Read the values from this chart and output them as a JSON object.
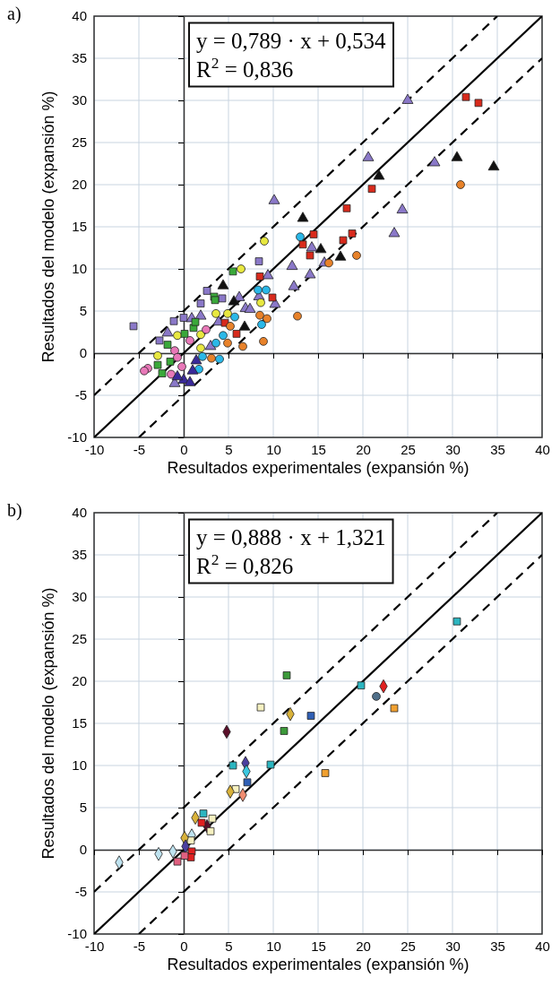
{
  "chart_data": [
    {
      "type": "scatter",
      "title": "a)",
      "xlabel": "Resultados experimentales (expansión %)",
      "ylabel": "Resultados del modelo (expansión %)",
      "xlim": [
        -10,
        40
      ],
      "ylim": [
        -10,
        40
      ],
      "xticks": [
        -10,
        -5,
        0,
        5,
        10,
        15,
        20,
        25,
        30,
        35,
        40
      ],
      "yticks": [
        -10,
        -5,
        0,
        5,
        10,
        15,
        20,
        25,
        30,
        35,
        40
      ],
      "grid": true,
      "annotations": [
        "y = 0,789 · x + 0,534",
        "R$^{2}$ = 0,836"
      ],
      "series": [
        {
          "type": "line",
          "color": "#000000",
          "line_style": "solid",
          "marker": "none",
          "x": [
            -10,
            40
          ],
          "values": [
            -10,
            40
          ]
        },
        {
          "type": "line",
          "color": "#000000",
          "line_style": "dashed",
          "marker": "none",
          "x": [
            -10,
            35
          ],
          "values": [
            -5,
            40
          ]
        },
        {
          "type": "line",
          "color": "#000000",
          "line_style": "dashed",
          "marker": "none",
          "x": [
            -5,
            40
          ],
          "values": [
            -10,
            35
          ]
        },
        {
          "color": "#8a78c8",
          "marker": "square",
          "x": [
            -5.6,
            2.6,
            1.9,
            4.3,
            8.4,
            0,
            -1.1,
            -2.7
          ],
          "values": [
            3.2,
            7.4,
            5.9,
            6.5,
            10.9,
            4.2,
            3.8,
            1.5
          ]
        },
        {
          "color": "#8a78c8",
          "marker": "triangle",
          "x": [
            10.1,
            9.4,
            12.1,
            12.3,
            10.2,
            8.4,
            6.2,
            6.9,
            7.4,
            3.9,
            1.9,
            0.9,
            -1.8,
            3.0,
            -1.0,
            14.3,
            25.0,
            20.6,
            28.0,
            24.4,
            23.5,
            15.7,
            14.1
          ],
          "values": [
            18.1,
            9.2,
            10.3,
            7.9,
            5.8,
            6.7,
            6.6,
            5.3,
            5.2,
            3.7,
            4.4,
            4.1,
            2.4,
            0.8,
            -3.6,
            12.5,
            30.0,
            23.2,
            22.6,
            17.0,
            14.2,
            10.7,
            9.3
          ]
        },
        {
          "color": "#111111",
          "marker": "triangle",
          "x": [
            21.8,
            30.5,
            34.6,
            13.3,
            15.3,
            17.5,
            4.4,
            5.6,
            6.8
          ],
          "values": [
            21.0,
            23.2,
            22.1,
            16.0,
            12.3,
            11.4,
            8.0,
            6.1,
            3.1
          ]
        },
        {
          "color": "#d82a1c",
          "marker": "square",
          "x": [
            31.5,
            32.9,
            21.0,
            18.2,
            14.5,
            18.8,
            17.8,
            13.3,
            14.1,
            8.5,
            9.9,
            5.9,
            4.6
          ],
          "values": [
            30.4,
            29.7,
            19.5,
            17.2,
            14.1,
            14.2,
            13.4,
            12.9,
            11.6,
            9.1,
            6.6,
            2.3,
            3.6
          ]
        },
        {
          "color": "#e8822a",
          "marker": "circle",
          "x": [
            30.9,
            19.3,
            16.2,
            12.7,
            8.5,
            9.3,
            8.9,
            6.6,
            4.9,
            5.2,
            3.1
          ],
          "values": [
            20.0,
            11.6,
            10.7,
            4.4,
            4.5,
            4.1,
            1.4,
            0.8,
            1.2,
            3.2,
            -0.6
          ]
        },
        {
          "color": "#2ab8e8",
          "marker": "circle",
          "x": [
            13.0,
            8.3,
            9.2,
            8.7,
            5.7,
            4.4,
            3.6,
            4.0,
            2.1,
            1.7
          ],
          "values": [
            13.8,
            7.5,
            7.5,
            3.4,
            4.3,
            2.1,
            1.2,
            -0.7,
            -0.4,
            -1.9
          ]
        },
        {
          "color": "#e8e840",
          "marker": "circle",
          "x": [
            9.0,
            6.4,
            3.6,
            4.9,
            1.9,
            1.9,
            -0.7,
            -2.9,
            8.6
          ],
          "values": [
            13.3,
            10.0,
            4.7,
            4.7,
            2.2,
            0.6,
            2.1,
            -0.3,
            6.0
          ]
        },
        {
          "color": "#3aa83a",
          "marker": "square",
          "x": [
            5.5,
            3.4,
            3.5,
            1.1,
            0.1,
            -1.8,
            -2.9,
            -2.4,
            -1.5,
            1.3
          ],
          "values": [
            9.7,
            6.7,
            6.3,
            3.0,
            2.3,
            1.0,
            -1.4,
            -2.4,
            -1.0,
            3.7
          ]
        },
        {
          "color": "#e878b8",
          "marker": "circle",
          "x": [
            -4.0,
            -4.4,
            0.7,
            2.5,
            -1.0,
            -0.7,
            -1.4,
            -0.2
          ],
          "values": [
            -1.8,
            -2.1,
            1.5,
            2.8,
            0.3,
            -0.5,
            -2.5,
            -1.6
          ]
        },
        {
          "color": "#3a2a9a",
          "marker": "triangle",
          "x": [
            1.0,
            1.4,
            0,
            -0.7,
            0.7
          ],
          "values": [
            -2.1,
            -0.9,
            -3.2,
            -2.8,
            -3.5
          ]
        }
      ]
    },
    {
      "type": "scatter",
      "title": "b)",
      "xlabel": "Resultados experimentales (expansión %)",
      "ylabel": "Resultados del modelo (expansión %)",
      "xlim": [
        -10,
        40
      ],
      "ylim": [
        -10,
        40
      ],
      "xticks": [
        -10,
        -5,
        0,
        5,
        10,
        15,
        20,
        25,
        30,
        35,
        40
      ],
      "yticks": [
        -10,
        -5,
        0,
        5,
        10,
        15,
        20,
        25,
        30,
        35,
        40
      ],
      "grid": true,
      "annotations": [
        "y = 0,888 · x + 1,321",
        "R$^{2}$ = 0,826"
      ],
      "series": [
        {
          "type": "line",
          "color": "#000000",
          "line_style": "solid",
          "marker": "none",
          "x": [
            -10,
            40
          ],
          "values": [
            -10,
            40
          ]
        },
        {
          "type": "line",
          "color": "#000000",
          "line_style": "dashed",
          "marker": "none",
          "x": [
            -10,
            35
          ],
          "values": [
            -5,
            40
          ]
        },
        {
          "type": "line",
          "color": "#000000",
          "line_style": "dashed",
          "marker": "none",
          "x": [
            -5,
            40
          ],
          "values": [
            -10,
            35
          ]
        },
        {
          "color": "#bfe3f0",
          "marker": "diamond",
          "x": [
            -7.2,
            -2.8,
            -1.2,
            0.9
          ],
          "values": [
            -1.5,
            -0.5,
            -0.2,
            1.7
          ]
        },
        {
          "color": "#5a0f2a",
          "marker": "diamond",
          "x": [
            4.8,
            2.6
          ],
          "values": [
            14.0,
            2.8
          ]
        },
        {
          "color": "#f5f0c0",
          "marker": "square",
          "x": [
            8.6,
            5.8,
            3.0,
            3.2,
            0.8
          ],
          "values": [
            16.9,
            7.2,
            2.2,
            3.7,
            1.1
          ]
        },
        {
          "color": "#d9b23a",
          "marker": "diamond",
          "x": [
            11.9,
            5.2,
            1.3,
            0.1
          ],
          "values": [
            16.1,
            6.9,
            3.8,
            1.4
          ]
        },
        {
          "color": "#2f5fb5",
          "marker": "square",
          "x": [
            14.2,
            7.1
          ],
          "values": [
            15.9,
            8.0
          ]
        },
        {
          "color": "#3c9a3a",
          "marker": "square",
          "x": [
            11.2,
            11.5
          ],
          "values": [
            14.1,
            20.7
          ]
        },
        {
          "color": "#2bb5c0",
          "marker": "square",
          "x": [
            5.5,
            9.7,
            2.2,
            19.8,
            30.5
          ],
          "values": [
            10.0,
            10.1,
            4.3,
            19.5,
            27.1
          ]
        },
        {
          "color": "#4b3fa0",
          "marker": "diamond",
          "x": [
            6.9,
            0.2
          ],
          "values": [
            10.3,
            0.4
          ]
        },
        {
          "color": "#3cc8e0",
          "marker": "diamond",
          "x": [
            7.0
          ],
          "values": [
            9.3
          ]
        },
        {
          "color": "#f0a030",
          "marker": "square",
          "x": [
            15.8,
            23.5
          ],
          "values": [
            9.1,
            16.8
          ]
        },
        {
          "color": "#f08c70",
          "marker": "diamond",
          "x": [
            6.6
          ],
          "values": [
            6.5
          ]
        },
        {
          "color": "#e02020",
          "marker": "square",
          "x": [
            2.0,
            0.9,
            0.8
          ],
          "values": [
            3.2,
            -0.2,
            -0.9
          ]
        },
        {
          "color": "#e02020",
          "marker": "diamond",
          "x": [
            22.3
          ],
          "values": [
            19.4
          ]
        },
        {
          "color": "#e06080",
          "marker": "square",
          "x": [
            0.1,
            -0.7
          ],
          "values": [
            -0.7,
            -1.4
          ]
        },
        {
          "color": "#50708a",
          "marker": "circle",
          "x": [
            21.5
          ],
          "values": [
            18.2
          ]
        }
      ]
    }
  ]
}
